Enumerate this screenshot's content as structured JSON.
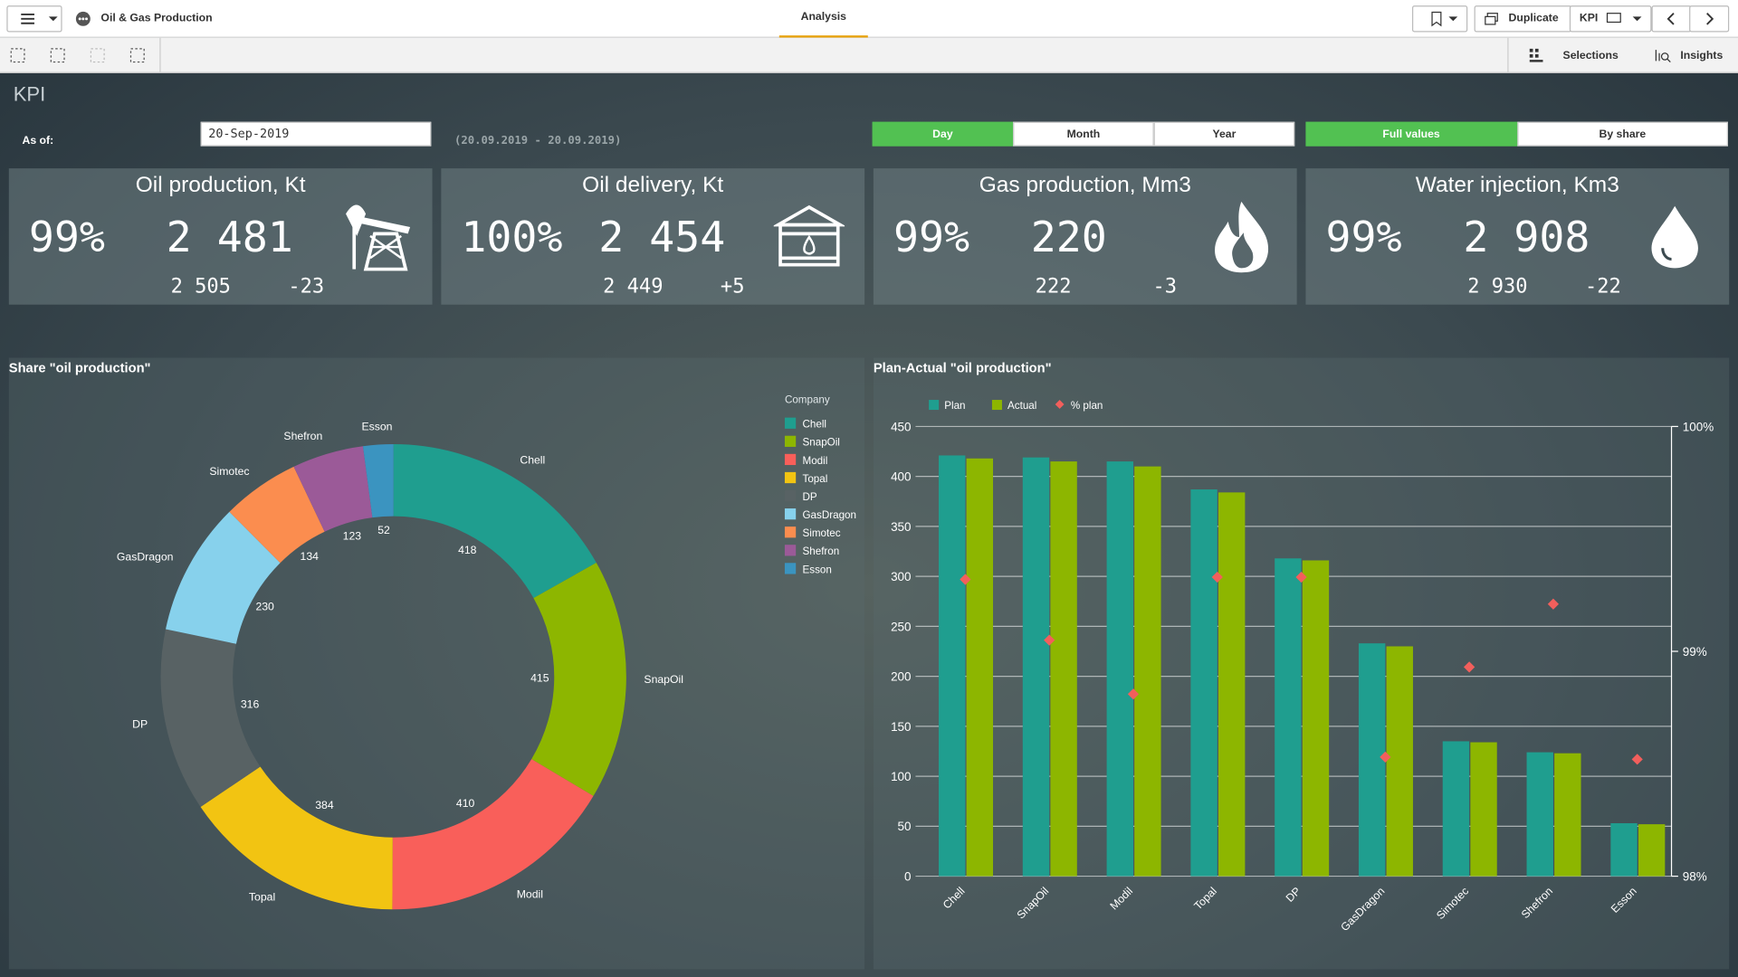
{
  "header": {
    "app_title": "Oil & Gas Production",
    "tab": "Analysis",
    "duplicate": "Duplicate",
    "sheet_menu": "KPI",
    "selections": "Selections",
    "insights": "Insights"
  },
  "sheet": {
    "title": "KPI",
    "as_of_label": "As of:",
    "date": "20-Sep-2019",
    "range": "(20.09.2019 - 20.09.2019)",
    "period_buttons": [
      "Day",
      "Month",
      "Year"
    ],
    "period_selected": 0,
    "mode_buttons": [
      "Full values",
      "By share"
    ],
    "mode_selected": 0
  },
  "kpis": [
    {
      "title": "Oil production, Kt",
      "share": "99%",
      "actual": "2 481",
      "plan": "2 505",
      "delta": "-23"
    },
    {
      "title": "Oil delivery, Kt",
      "share": "100%",
      "actual": "2 454",
      "plan": "2 449",
      "delta": "+5"
    },
    {
      "title": "Gas production, Mm3",
      "share": "99%",
      "actual": "220",
      "plan": "222",
      "delta": "-3"
    },
    {
      "title": "Water injection, Km3",
      "share": "99%",
      "actual": "2 908",
      "plan": "2 930",
      "delta": "-22"
    }
  ],
  "chart_data": [
    {
      "type": "pie",
      "title": "Share \"oil production\"",
      "legend_title": "Company",
      "donut": true,
      "categories": [
        "Chell",
        "SnapOil",
        "Modil",
        "Topal",
        "DP",
        "GasDragon",
        "Simotec",
        "Shefron",
        "Esson"
      ],
      "values": [
        418,
        415,
        410,
        384,
        316,
        230,
        134,
        123,
        52
      ],
      "colors": [
        "#1f9e8f",
        "#8db600",
        "#f95f5a",
        "#f2c412",
        "#586264",
        "#87d1ec",
        "#fb8d4f",
        "#9b5a98",
        "#3b94c0"
      ]
    },
    {
      "type": "bar",
      "title": "Plan-Actual \"oil production\"",
      "categories": [
        "Chell",
        "SnapOil",
        "Modil",
        "Topal",
        "DP",
        "GasDragon",
        "Simotec",
        "Shefron",
        "Esson"
      ],
      "series": [
        {
          "name": "Plan",
          "color": "#1f9e8f",
          "values": [
            421,
            419,
            415,
            387,
            318,
            233,
            135,
            124,
            53
          ]
        },
        {
          "name": "Actual",
          "color": "#8db600",
          "values": [
            418,
            415,
            410,
            384,
            316,
            230,
            134,
            123,
            52
          ]
        },
        {
          "name": "% plan",
          "color": "#f25f5c",
          "axis": "y2",
          "marker": "diamond",
          "values": [
            99.32,
            99.05,
            98.81,
            99.33,
            99.33,
            98.53,
            98.93,
            99.21,
            98.52
          ]
        }
      ],
      "ylim": [
        0,
        450
      ],
      "yticks": [
        0,
        50,
        100,
        150,
        200,
        250,
        300,
        350,
        400,
        450
      ],
      "y2lim": [
        98,
        100
      ],
      "y2ticks": [
        {
          "value": 98,
          "label": "98%"
        },
        {
          "value": 99,
          "label": "99%"
        },
        {
          "value": 100,
          "label": "100%"
        }
      ],
      "grid": true
    }
  ]
}
